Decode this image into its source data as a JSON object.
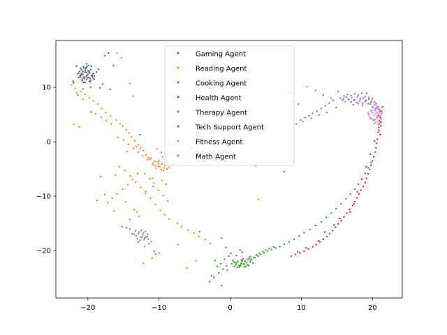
{
  "chart_data": {
    "type": "scatter",
    "title": "",
    "xlabel": "",
    "ylabel": "",
    "xlim": [
      -24.5,
      24.2
    ],
    "ylim": [
      -28.7,
      18.6
    ],
    "xticks": [
      -20,
      -10,
      0,
      10,
      20
    ],
    "yticks": [
      -20,
      -10,
      0,
      10
    ],
    "xtick_labels": [
      "−20",
      "−10",
      "0",
      "10",
      "20"
    ],
    "ytick_labels": [
      "−20",
      "−10",
      "0",
      "10"
    ],
    "legend_position": "upper center",
    "series": [
      {
        "name": "Gaming Agent",
        "color": "#1f77b4",
        "x": [
          -21.1,
          -20.9,
          -20.7,
          -20.4,
          -20.2,
          -20.0,
          -19.8,
          -19.6,
          -19.3,
          -19.1,
          -21.3,
          -20.8,
          -20.5,
          -20.1,
          -19.7,
          -19.4,
          -21.0,
          -20.6,
          -20.3,
          -19.9,
          -19.5,
          -20.2,
          -19.8,
          -20.6,
          -21.4,
          -18.8,
          -18.5,
          -17.9,
          -16.9,
          -16.4,
          -17.6,
          -18.3,
          -17.1,
          -12.7,
          -22.0,
          -21.6
        ],
        "y": [
          12.2,
          12.6,
          12.9,
          13.1,
          12.7,
          12.4,
          12.9,
          13.2,
          12.5,
          12.1,
          11.8,
          11.5,
          11.9,
          11.7,
          11.6,
          12.0,
          13.5,
          13.8,
          13.6,
          14.0,
          13.9,
          14.3,
          11.1,
          10.9,
          12.5,
          12.8,
          13.3,
          10.6,
          9.6,
          14.0,
          15.8,
          9.9,
          16.3,
          1.3,
          10.8,
          13.9
        ]
      },
      {
        "name": "Reading Agent",
        "color": "#ff7f0e",
        "x": [
          -10.8,
          -10.5,
          -10.2,
          -9.9,
          -9.6,
          -9.3,
          -10.9,
          -10.4,
          -10.0,
          -9.7,
          -9.2,
          -8.8,
          -8.9,
          -8.6,
          -9.4,
          -10.1,
          -11.3,
          -11.8,
          -12.2,
          -12.6,
          -11.5,
          -12.9,
          -13.4,
          -13.9,
          -14.2,
          -14.6,
          -15.1,
          -15.5,
          -16.0,
          -16.8,
          -17.5,
          -18.1,
          -18.6,
          -19.2,
          -19.8,
          -20.4,
          -21.0,
          -21.8,
          -22.3,
          -22.0,
          -21.2,
          -19.6,
          -18.9,
          -18.1,
          -17.4,
          -16.7,
          -15.8,
          -15.0,
          -14.3,
          -13.6,
          -12.9,
          -12.3,
          -11.6,
          -11.1,
          -10.6,
          -10.1,
          -9.5,
          -8.9,
          -8.3,
          -7.6,
          -7.1,
          -6.6,
          -6.0,
          -5.4,
          -4.7,
          -4.1,
          -3.6,
          -2.9,
          -2.2,
          -1.6,
          -0.9,
          -13.0,
          -13.7,
          -14.4,
          -15.1,
          -15.9,
          -16.6,
          -17.2,
          -15.6,
          -14.8,
          -14.0,
          -13.3,
          -12.6,
          -11.9,
          -11.2,
          -10.5,
          -9.8,
          -9.2,
          -8.6,
          -12.0,
          -11.3,
          -10.7,
          -10.1,
          -9.4,
          -8.8,
          -9.7,
          -10.3,
          -7.4,
          -6.8,
          -5.9,
          -5.1,
          -4.4,
          -3.5,
          -2.8,
          -10.0,
          -11.0,
          -12.2,
          -13.1,
          -14.1,
          -16.1,
          -16.3,
          -12.8,
          -13.5,
          -14.7,
          -4.8,
          -6.1,
          -7.3,
          3.6,
          4.0,
          -1.5,
          -9.6,
          -10.8,
          -11.9,
          -8.2,
          -19.5,
          -20.7,
          -21.6,
          -13.2,
          -14.5,
          -10.9,
          -9.0
        ],
        "y": [
          -3.9,
          -4.4,
          -3.7,
          -4.6,
          -4.1,
          -4.8,
          -4.2,
          -4.9,
          -3.5,
          -5.1,
          -4.3,
          -3.8,
          -5.0,
          -4.7,
          -5.3,
          -4.0,
          -3.2,
          -2.4,
          -1.6,
          -1.1,
          -2.9,
          -0.6,
          0.2,
          0.9,
          1.6,
          2.2,
          2.9,
          3.3,
          4.0,
          4.7,
          5.4,
          6.1,
          6.9,
          7.5,
          8.1,
          8.7,
          9.2,
          9.8,
          10.4,
          3.2,
          2.7,
          5.4,
          5.1,
          4.5,
          3.9,
          3.3,
          0.8,
          0.3,
          -0.5,
          -1.2,
          -1.9,
          -2.6,
          -3.3,
          -3.0,
          -3.6,
          -4.5,
          -2.8,
          -3.4,
          -2.2,
          -4.2,
          -3.1,
          -2.5,
          -1.9,
          -1.2,
          -1.8,
          -2.6,
          -1.4,
          -2.0,
          -3.4,
          -4.0,
          -2.7,
          -5.8,
          -6.9,
          -7.9,
          -8.7,
          -9.6,
          -10.4,
          -11.2,
          -4.6,
          -5.2,
          -6.3,
          -7.4,
          -8.4,
          -9.5,
          -10.3,
          -11.5,
          -12.6,
          -13.4,
          -14.2,
          -5.9,
          -6.8,
          -7.6,
          -8.9,
          -9.9,
          -10.9,
          -2.0,
          -1.3,
          -15.0,
          -15.6,
          -16.2,
          -16.8,
          -17.4,
          -18.0,
          -18.7,
          -20.5,
          -21.4,
          -22.3,
          -12.9,
          -14.3,
          -6.1,
          -12.7,
          -13.7,
          -12.5,
          -11.0,
          -21.9,
          -23.2,
          -18.9,
          -4.4,
          -10.6,
          -1.7,
          -7.1,
          -8.2,
          -9.1,
          -0.6,
          5.5,
          7.8,
          9.0,
          -0.9,
          -1.8,
          -6.7,
          -7.8
        ]
      },
      {
        "name": "Cooking Agent",
        "color": "#2ca02c",
        "x": [
          0.2,
          0.5,
          0.8,
          1.1,
          1.4,
          1.7,
          2.0,
          2.3,
          2.6,
          2.9,
          3.2,
          0.6,
          0.9,
          1.3,
          1.6,
          1.9,
          2.2,
          2.5,
          2.8,
          0.4,
          0.7,
          1.0,
          1.5,
          1.8,
          2.1,
          2.4,
          2.7,
          1.2,
          1.6,
          2.0,
          3.5,
          3.9,
          4.3,
          4.8,
          5.3,
          5.8,
          6.4,
          7.0,
          7.6,
          8.3,
          9.0,
          9.7,
          10.4,
          11.2,
          12.0,
          12.8,
          13.5,
          14.2,
          14.9,
          15.6,
          16.3,
          16.9,
          17.5,
          18.0,
          18.5,
          19.0,
          19.4,
          19.8,
          20.2,
          3.0,
          3.3,
          3.7,
          4.1,
          4.6,
          5.0,
          5.5,
          6.1,
          -0.5,
          -1.0,
          -1.6,
          -2.3,
          -2.9,
          -1.2,
          -0.2,
          -0.8,
          0.1,
          1.4,
          -0.4,
          -1.8,
          -2.1,
          -2.6,
          -1.3,
          0.9,
          -0.6,
          1.7,
          2.8,
          -4.3,
          -1.2,
          -20.7,
          -21.4,
          -19.6
        ],
        "y": [
          -22.4,
          -22.1,
          -22.6,
          -22.0,
          -22.8,
          -21.9,
          -22.5,
          -22.2,
          -22.7,
          -21.8,
          -22.3,
          -22.9,
          -22.3,
          -23.0,
          -21.7,
          -22.4,
          -22.9,
          -21.6,
          -22.1,
          -21.8,
          -22.2,
          -23.1,
          -22.5,
          -21.5,
          -22.0,
          -22.6,
          -21.4,
          -22.7,
          -22.3,
          -23.0,
          -21.3,
          -21.0,
          -20.7,
          -20.4,
          -20.1,
          -19.8,
          -19.5,
          -19.2,
          -18.8,
          -18.4,
          -17.9,
          -17.3,
          -16.7,
          -16.1,
          -15.4,
          -14.7,
          -13.9,
          -13.1,
          -12.3,
          -11.4,
          -10.5,
          -9.6,
          -8.7,
          -7.8,
          -6.8,
          -5.8,
          -4.8,
          -3.8,
          -2.8,
          -21.6,
          -21.2,
          -20.8,
          -20.5,
          -20.2,
          -19.9,
          -19.6,
          -19.3,
          -22.8,
          -23.4,
          -24.1,
          -24.9,
          -25.7,
          -26.4,
          -21.0,
          -21.6,
          -20.5,
          -19.9,
          -23.6,
          -22.9,
          -21.8,
          -24.6,
          -22.4,
          -20.9,
          -19.4,
          -20.3,
          -21.1,
          -16.5,
          -17.7,
          9.7,
          8.6,
          10.0
        ],
        "labels": []
      },
      {
        "name": "Health Agent",
        "color": "#d62728",
        "x": [
          20.8,
          21.0,
          21.2,
          20.9,
          21.1,
          20.7,
          21.3,
          20.6,
          21.0,
          20.5,
          20.4,
          20.2,
          20.0,
          19.8,
          19.6,
          19.4,
          19.2,
          19.0,
          18.7,
          18.4,
          18.1,
          17.8,
          17.5,
          17.2,
          16.8,
          16.4,
          16.0,
          15.6,
          15.2,
          14.8,
          14.4,
          14.0,
          13.6,
          13.1,
          12.6,
          12.1,
          11.6,
          11.0,
          10.4,
          9.8,
          9.2,
          8.6,
          21.4,
          21.1,
          20.9,
          20.3,
          19.7,
          19.1,
          18.5,
          17.9,
          17.4,
          16.9,
          15.4,
          14.6,
          13.3,
          12.4,
          10.7,
          9.5,
          21.2,
          20.8
        ],
        "y": [
          4.8,
          3.9,
          2.9,
          2.1,
          1.3,
          0.5,
          5.6,
          -0.3,
          3.3,
          -1.1,
          -1.9,
          -2.7,
          -3.5,
          -4.3,
          -5.1,
          -5.9,
          -6.7,
          -7.5,
          -8.2,
          -8.9,
          -9.6,
          -10.3,
          -11.0,
          -11.7,
          -12.4,
          -13.1,
          -13.8,
          -14.5,
          -15.1,
          -15.7,
          -16.3,
          -16.9,
          -17.4,
          -17.9,
          -18.4,
          -18.9,
          -19.3,
          -19.7,
          -20.1,
          -20.4,
          -20.7,
          -21.0,
          6.4,
          4.4,
          2.6,
          0.1,
          -2.3,
          -4.6,
          -6.9,
          -9.2,
          -11.4,
          -12.9,
          -14.1,
          -15.3,
          -16.6,
          -18.2,
          -19.5,
          -20.2,
          3.6,
          1.7
        ],
        "labels": []
      },
      {
        "name": "Therapy Agent",
        "color": "#9467bd",
        "x": [
          15.5,
          15.9,
          16.3,
          16.7,
          17.1,
          17.5,
          17.9,
          18.3,
          18.7,
          19.1,
          19.5,
          19.9,
          20.3,
          15.8,
          16.2,
          16.6,
          17.0,
          17.4,
          17.8,
          18.2,
          18.6,
          19.0,
          19.4,
          19.8,
          16.0,
          16.5,
          17.0,
          17.5,
          18.0,
          18.5,
          19.0,
          19.5,
          20.0,
          20.5,
          20.8,
          21.0,
          21.1,
          20.9,
          14.5,
          13.9,
          13.4,
          12.8,
          12.2,
          11.6,
          11.1,
          10.5,
          9.9,
          14.9,
          13.6,
          12.5,
          11.4,
          10.2,
          9.3,
          8.4,
          7.6,
          14.2,
          13.1,
          12.0,
          10.8,
          9.6,
          8.8,
          15.2,
          17.3,
          18.6,
          19.7,
          20.6,
          21.3,
          20.4,
          19.2,
          18.0
        ],
        "y": [
          8.0,
          7.9,
          8.2,
          7.8,
          8.1,
          7.7,
          8.3,
          7.9,
          8.0,
          7.6,
          7.8,
          7.5,
          7.3,
          7.6,
          7.4,
          7.8,
          7.3,
          7.6,
          7.2,
          7.5,
          7.1,
          7.4,
          7.0,
          7.2,
          8.4,
          8.7,
          8.5,
          8.8,
          8.6,
          8.9,
          8.3,
          8.1,
          7.9,
          7.0,
          6.4,
          5.6,
          4.8,
          6.0,
          7.6,
          7.1,
          6.6,
          6.1,
          5.6,
          5.2,
          4.8,
          4.4,
          4.0,
          6.3,
          5.4,
          4.9,
          4.3,
          3.7,
          3.3,
          9.0,
          -5.5,
          8.0,
          8.6,
          9.4,
          10.1,
          6.9,
          7.5,
          9.2,
          6.8,
          6.7,
          6.9,
          6.2,
          5.2,
          5.8,
          8.9,
          7.0
        ],
        "labels": []
      },
      {
        "name": "Tech Support Agent",
        "color": "#8c564b",
        "x": [
          -21.0,
          -20.7,
          -20.4,
          -20.1,
          -19.8,
          -19.5,
          -19.2,
          -21.2,
          -20.9,
          -20.5,
          -20.2,
          -19.9,
          -19.6,
          -19.3,
          -20.8,
          -20.3,
          -20.0,
          -19.7,
          -21.1,
          -20.6,
          -19.4,
          -20.4,
          -20.1,
          -21.3,
          -19.1,
          -20.9,
          -20.2,
          -19.8,
          -20.6,
          -22.1
        ],
        "y": [
          12.0,
          12.4,
          12.8,
          12.2,
          12.6,
          12.1,
          12.5,
          12.9,
          13.2,
          11.6,
          11.4,
          11.8,
          11.3,
          11.7,
          11.2,
          13.4,
          13.0,
          11.0,
          11.9,
          13.6,
          12.2,
          10.9,
          13.8,
          12.6,
          11.5,
          12.3,
          12.0,
          12.7,
          11.8,
          11.1
        ]
      },
      {
        "name": "Fitness Agent",
        "color": "#e377c2",
        "x": [
          20.2,
          20.5,
          20.8,
          21.1,
          19.9,
          20.4,
          20.7,
          21.0,
          19.7,
          20.1,
          20.6,
          20.9,
          19.5,
          20.0,
          20.3,
          20.8,
          21.2,
          19.8,
          20.2,
          20.6,
          21.0,
          19.6,
          20.0,
          20.5,
          20.9,
          19.9,
          20.3,
          20.7,
          21.1,
          19.4,
          20.4,
          20.8,
          20.1,
          -15.9,
          -15.3,
          -14.1,
          -13.6
        ],
        "y": [
          4.9,
          5.2,
          4.6,
          5.5,
          5.8,
          6.1,
          5.4,
          4.8,
          4.3,
          4.0,
          4.4,
          3.7,
          5.0,
          6.4,
          3.4,
          6.0,
          4.2,
          5.6,
          3.9,
          6.6,
          5.9,
          4.6,
          5.3,
          3.6,
          5.1,
          4.2,
          6.8,
          4.7,
          5.7,
          5.3,
          4.1,
          3.2,
          6.3,
          16.3,
          15.4,
          10.7,
          8.4
        ],
        "labels": []
      },
      {
        "name": "Math Agent",
        "color": "#7f7f7f",
        "x": [
          -13.5,
          -13.2,
          -12.9,
          -12.6,
          -12.3,
          -12.0,
          -11.7,
          -13.0,
          -12.7,
          -12.4,
          -12.1,
          -11.8,
          -11.5,
          -12.8,
          -12.5,
          -12.2,
          -11.9,
          -11.6,
          -13.3,
          -14.1,
          -14.6,
          -15.2,
          -12.0,
          -11.4,
          -10.7,
          -10.5,
          -17.6,
          -18.7,
          -18.2,
          -12.9,
          -13.8,
          -11.1
        ],
        "y": [
          -17.0,
          -17.3,
          -16.9,
          -17.5,
          -17.2,
          -17.7,
          -17.4,
          -17.8,
          -18.1,
          -17.6,
          -18.0,
          -17.5,
          -17.9,
          -16.6,
          -16.3,
          -16.8,
          -16.5,
          -17.0,
          -16.4,
          -16.0,
          -15.8,
          -15.6,
          -19.2,
          -18.7,
          -20.1,
          -20.6,
          -9.7,
          -10.8,
          -6.4,
          -18.4,
          -16.9,
          -18.3
        ]
      }
    ]
  }
}
